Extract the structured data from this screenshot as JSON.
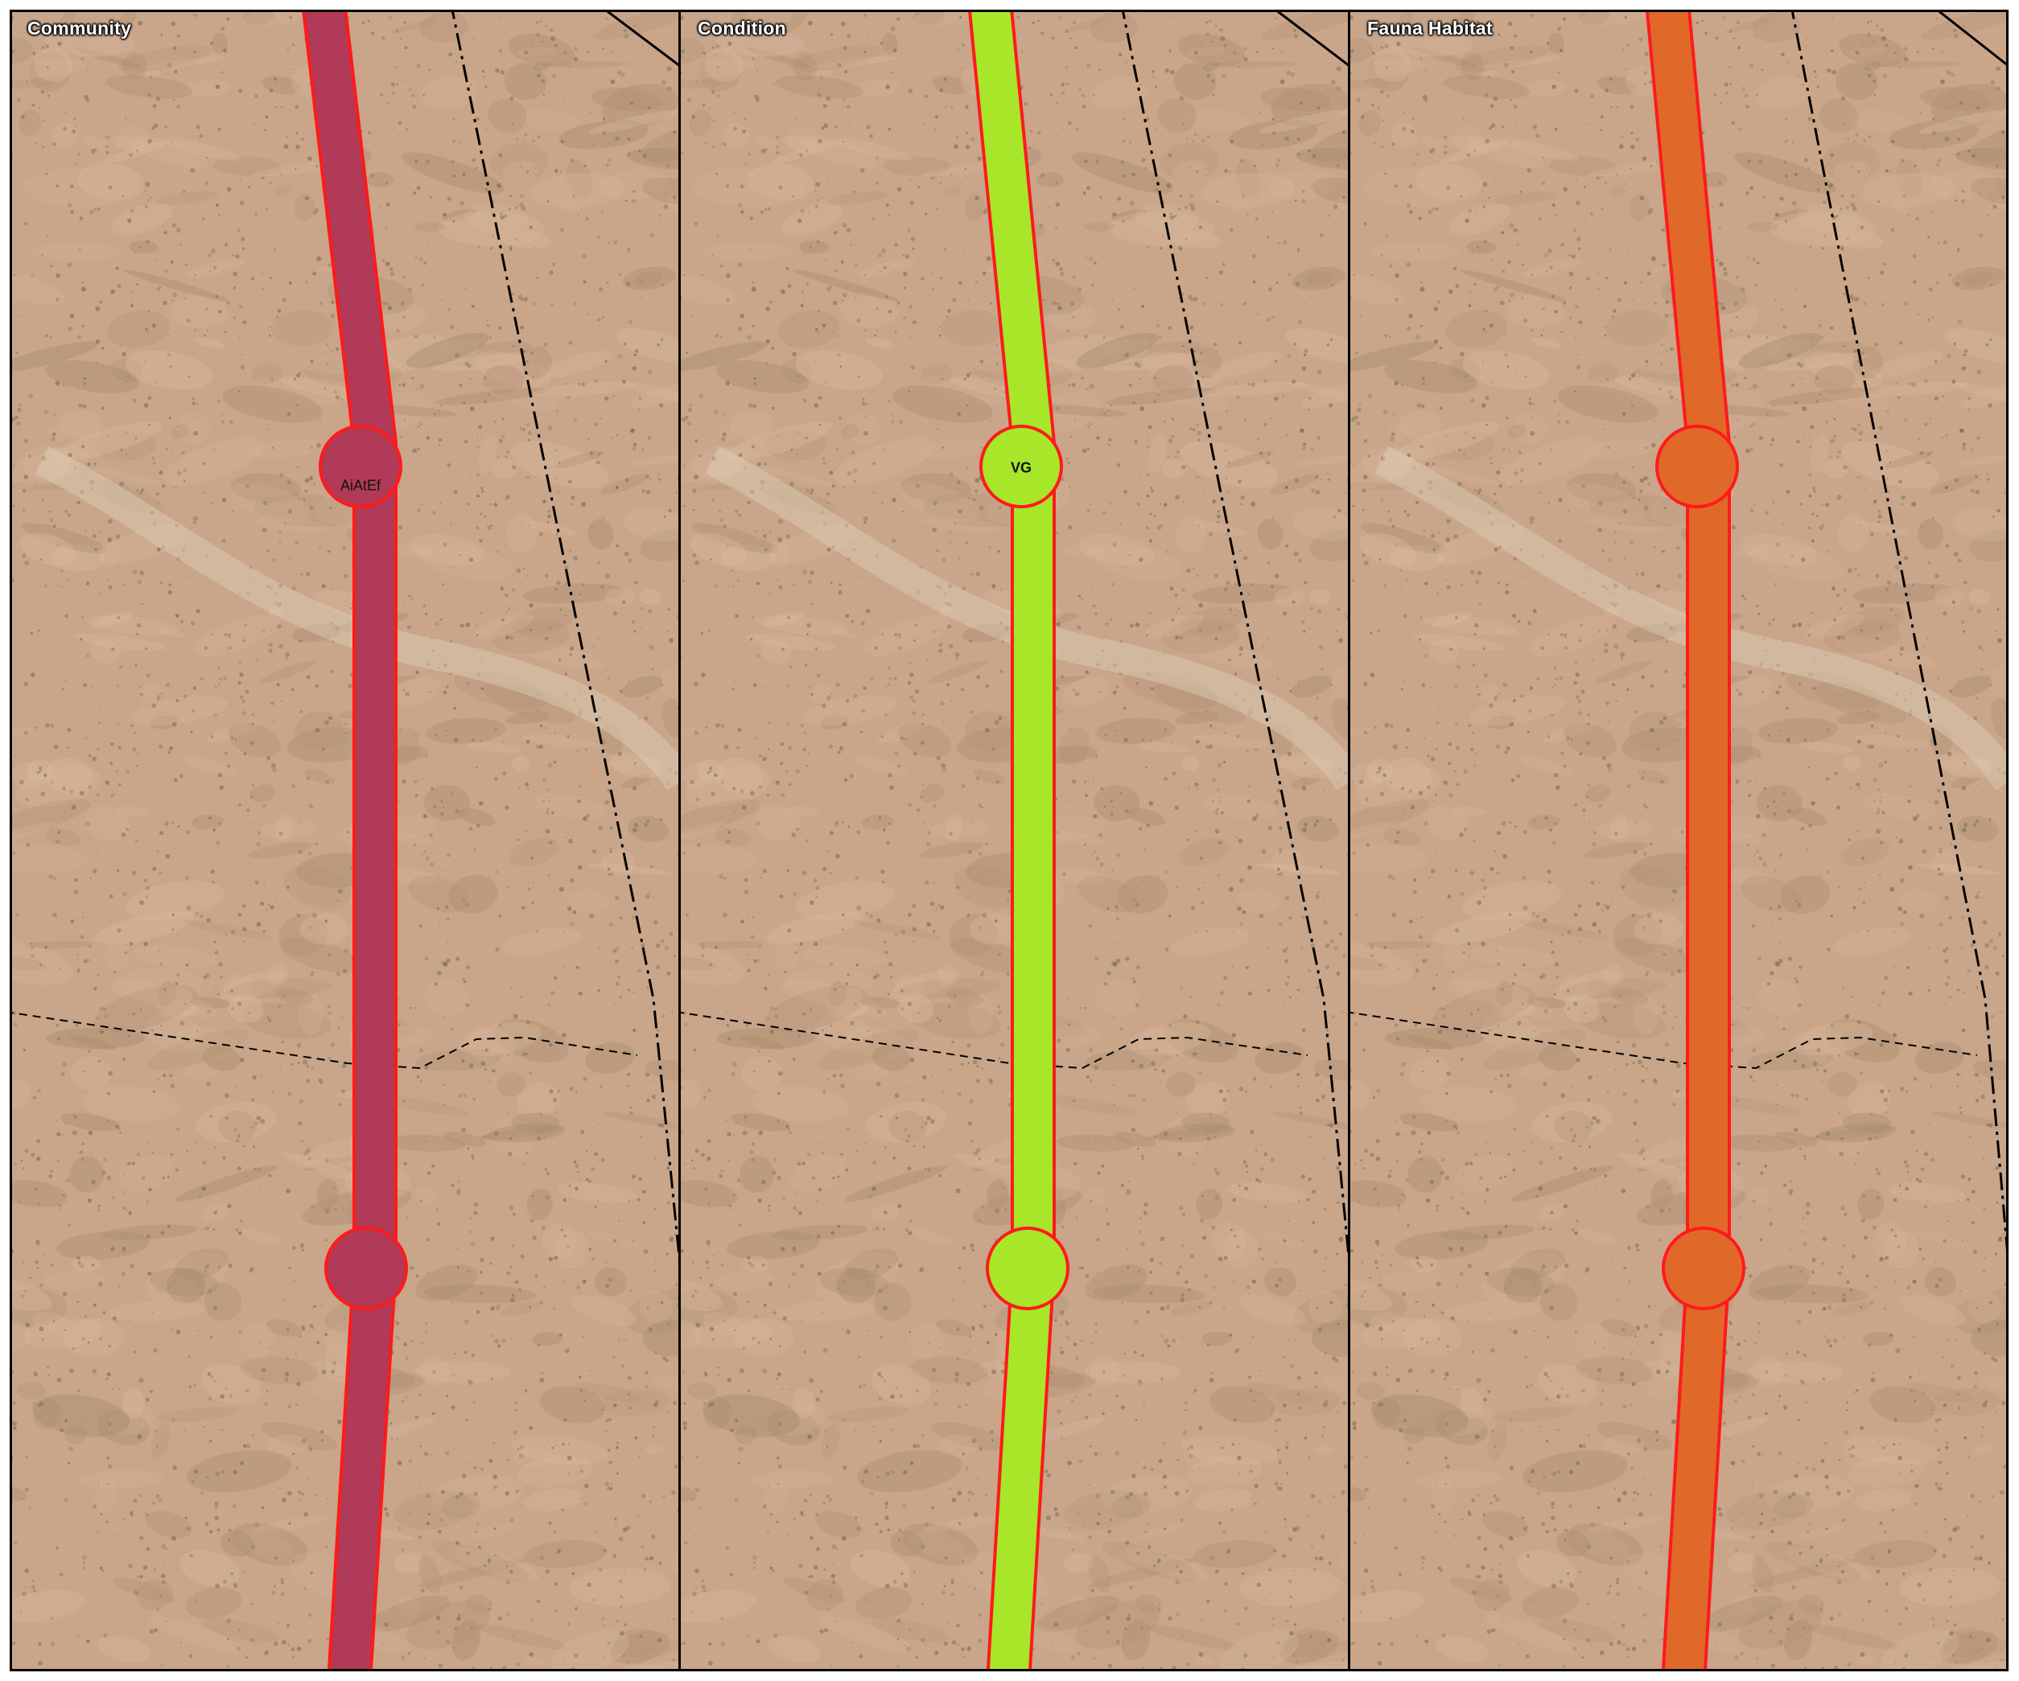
{
  "panels": [
    {
      "title": "Community",
      "fill_color": "#b03a57",
      "outline_color": "#ff1a1a",
      "node_label": "AiAtEf"
    },
    {
      "title": "Condition",
      "fill_color": "#a8e62a",
      "outline_color": "#ff1a1a",
      "node_label": "VG"
    },
    {
      "title": "Fauna Habitat",
      "fill_color": "#e0692a",
      "outline_color": "#ff1a1a",
      "node_label": ""
    }
  ],
  "colors": {
    "ground": "#c9a58a",
    "ground_dark": "#a88a6c",
    "vegetation": "#6f6a4a",
    "boundary_line": "#000000"
  }
}
